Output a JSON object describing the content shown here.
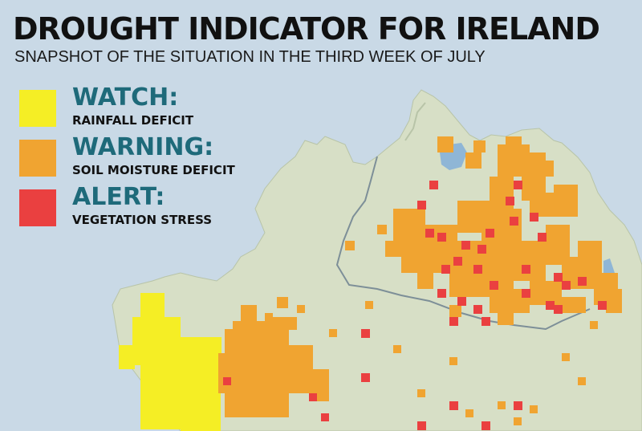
{
  "title": "DROUGHT INDICATOR FOR IRELAND",
  "subtitle": "SNAPSHOT OF THE SITUATION IN THE THIRD WEEK OF JULY",
  "legend": [
    {
      "title": "WATCH:",
      "desc": "RAINFALL DEFICIT",
      "color": "#f5ee25"
    },
    {
      "title": "WARNING:",
      "desc": "SOIL MOISTURE DEFICIT",
      "color": "#f0a431"
    },
    {
      "title": "ALERT:",
      "desc": "VEGETATION STRESS",
      "color": "#ea4040"
    }
  ],
  "colors": {
    "sea": "#c9d9e6",
    "land": "#d7dfc6",
    "border": "#7d8f98",
    "accent_text": "#1e6a7a",
    "lake": "#8fb6d6"
  }
}
